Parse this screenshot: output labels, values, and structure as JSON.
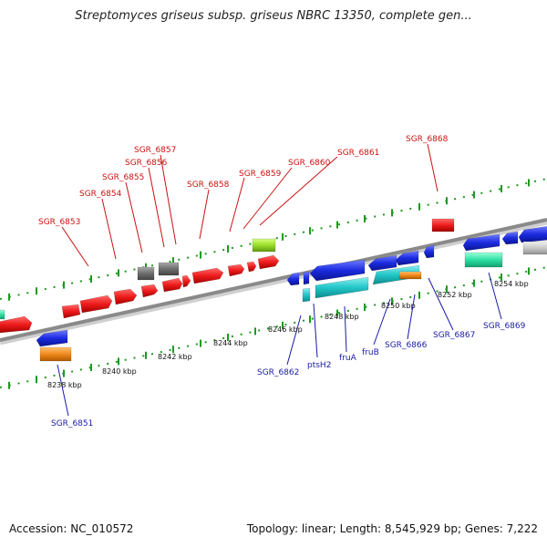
{
  "title": "Streptomyces griseus subsp. griseus NBRC 13350, complete gen...",
  "footer": {
    "accession": "Accession: NC_010572",
    "stats": "Topology: linear; Length: 8,545,929 bp; Genes: 7,222"
  },
  "colors": {
    "red": "#ee1c1c",
    "blue": "#1b2be0",
    "cyan": "#22c5c8",
    "orange": "#f08a1c",
    "gray": "#6e6e6e",
    "lime": "#9ade2a",
    "green": "#2ee0a4",
    "silver": "#c8c8c8",
    "top_label": "#cc1111",
    "bottom_label": "#1a1aaa"
  },
  "scale_ticks": [
    "8238 kbp",
    "8240 kbp",
    "8242 kbp",
    "8244 kbp",
    "8246 kbp",
    "8248 kbp",
    "8250 kbp",
    "8252 kbp",
    "8254 kbp"
  ],
  "top_labels": [
    "SGR_6853",
    "SGR_6854",
    "SGR_6855",
    "SGR_6856",
    "SGR_6857",
    "SGR_6858",
    "SGR_6859",
    "SGR_6860",
    "SGR_6861",
    "SGR_6868"
  ],
  "bottom_labels": [
    "SGR_6851",
    "SGR_6862",
    "ptsH2",
    "fruA",
    "fruB",
    "SGR_6866",
    "SGR_6867",
    "SGR_6869"
  ]
}
